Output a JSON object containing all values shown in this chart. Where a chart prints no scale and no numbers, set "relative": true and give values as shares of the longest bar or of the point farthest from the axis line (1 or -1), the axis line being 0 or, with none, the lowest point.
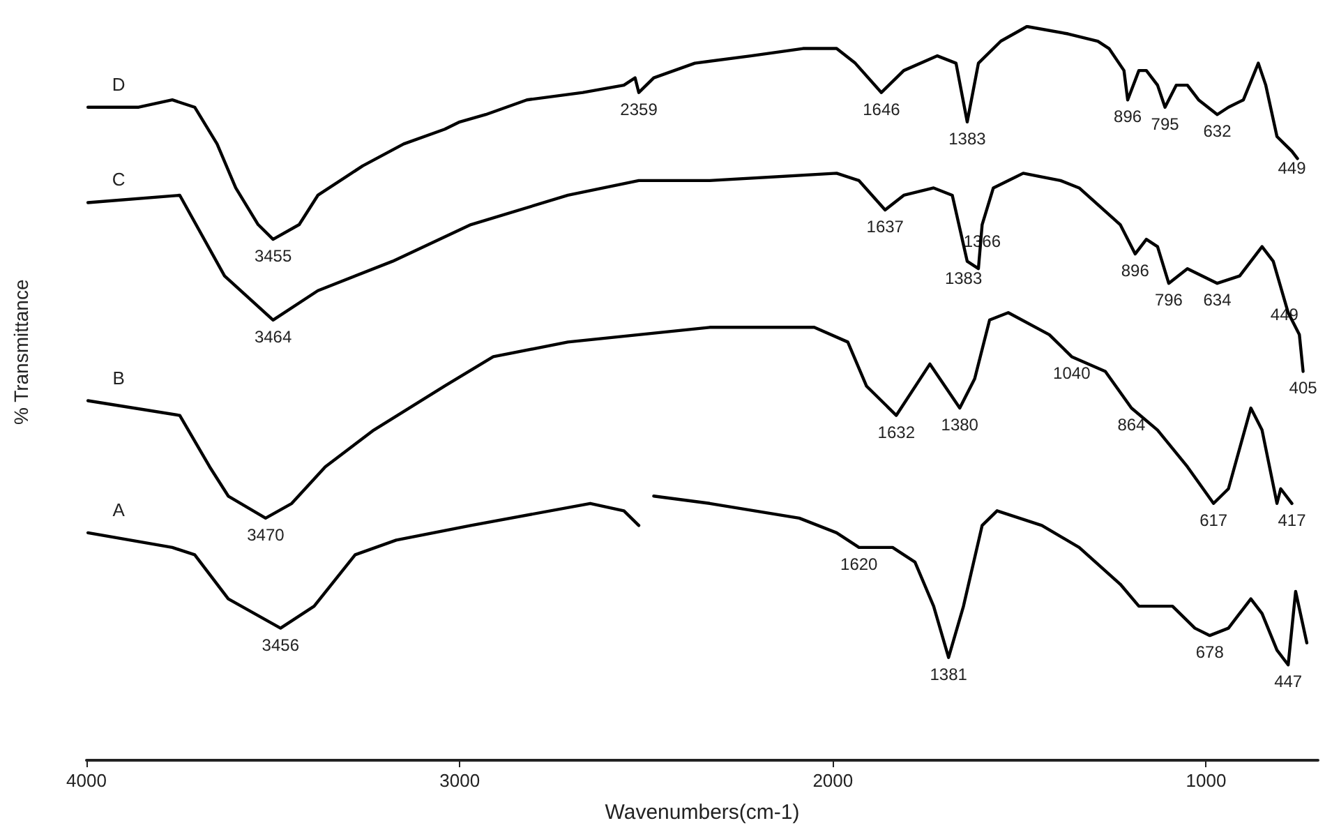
{
  "chart_data": {
    "type": "line",
    "xlabel": "Wavenumbers(cm-1)",
    "ylabel": "% Transmittance",
    "relative": true,
    "xlim": [
      4000,
      700
    ],
    "xticks": [
      4000,
      3000,
      2000,
      1000
    ],
    "marker": "none",
    "line_style": "solid",
    "series": [
      {
        "name": "D",
        "color": "#000000",
        "x": [
          3996,
          3860,
          3770,
          3710,
          3650,
          3600,
          3540,
          3500,
          3430,
          3380,
          3260,
          3150,
          3040,
          3000,
          2930,
          2820,
          2670,
          2560,
          2530,
          2520,
          2500,
          2480,
          2370,
          2220,
          2080,
          1990,
          1940,
          1870,
          1810,
          1720,
          1670,
          1640,
          1610,
          1550,
          1480,
          1370,
          1290,
          1260,
          1220,
          1210,
          1180,
          1160,
          1130,
          1110,
          1080,
          1050,
          1020,
          970,
          940,
          900,
          860,
          840,
          810,
          790,
          770,
          755
        ],
        "values": [
          0.89,
          0.89,
          0.9,
          0.89,
          0.84,
          0.78,
          0.73,
          0.71,
          0.73,
          0.77,
          0.81,
          0.84,
          0.86,
          0.87,
          0.88,
          0.9,
          0.91,
          0.92,
          0.93,
          0.91,
          0.92,
          0.93,
          0.95,
          0.96,
          0.97,
          0.97,
          0.95,
          0.91,
          0.94,
          0.96,
          0.95,
          0.87,
          0.95,
          0.98,
          1.0,
          0.99,
          0.98,
          0.97,
          0.94,
          0.9,
          0.94,
          0.94,
          0.92,
          0.89,
          0.92,
          0.92,
          0.9,
          0.88,
          0.89,
          0.9,
          0.95,
          0.92,
          0.85,
          0.84,
          0.83,
          0.82
        ]
      },
      {
        "name": "C",
        "color": "#000000",
        "x": [
          3996,
          3750,
          3630,
          3500,
          3380,
          3180,
          2970,
          2710,
          2520,
          2330,
          1990,
          1930,
          1860,
          1810,
          1730,
          1680,
          1640,
          1610,
          1600,
          1570,
          1490,
          1390,
          1340,
          1230,
          1190,
          1160,
          1130,
          1100,
          1050,
          1010,
          970,
          910,
          850,
          820,
          780,
          750,
          740
        ],
        "values": [
          0.76,
          0.77,
          0.66,
          0.6,
          0.64,
          0.68,
          0.73,
          0.77,
          0.79,
          0.79,
          0.8,
          0.79,
          0.75,
          0.77,
          0.78,
          0.77,
          0.68,
          0.67,
          0.73,
          0.78,
          0.8,
          0.79,
          0.78,
          0.73,
          0.69,
          0.71,
          0.7,
          0.65,
          0.67,
          0.66,
          0.65,
          0.66,
          0.7,
          0.68,
          0.61,
          0.58,
          0.53
        ]
      },
      {
        "name": "B",
        "color": "#000000",
        "x": [
          3996,
          3750,
          3670,
          3620,
          3520,
          3450,
          3360,
          3230,
          3040,
          2910,
          2710,
          2520,
          2330,
          2050,
          1960,
          1910,
          1830,
          1740,
          1660,
          1620,
          1580,
          1530,
          1420,
          1360,
          1270,
          1200,
          1130,
          1050,
          980,
          940,
          880,
          850,
          810,
          800,
          770
        ],
        "values": [
          0.49,
          0.47,
          0.4,
          0.36,
          0.33,
          0.35,
          0.4,
          0.45,
          0.51,
          0.55,
          0.57,
          0.58,
          0.59,
          0.59,
          0.57,
          0.51,
          0.47,
          0.54,
          0.48,
          0.52,
          0.6,
          0.61,
          0.58,
          0.55,
          0.53,
          0.48,
          0.45,
          0.4,
          0.35,
          0.37,
          0.48,
          0.45,
          0.35,
          0.37,
          0.35
        ]
      },
      {
        "name": "A",
        "color": "#000000",
        "x": [
          3996,
          3770,
          3710,
          3620,
          3480,
          3390,
          3280,
          3170,
          2970,
          2650,
          2560,
          2520,
          2500,
          2480,
          2330,
          2090,
          1990,
          1930,
          1840,
          1780,
          1730,
          1690,
          1650,
          1600,
          1560,
          1440,
          1340,
          1230,
          1180,
          1090,
          1030,
          990,
          940,
          880,
          850,
          810,
          780,
          760,
          730
        ],
        "values": [
          0.31,
          0.29,
          0.28,
          0.22,
          0.18,
          0.21,
          0.28,
          0.3,
          0.32,
          0.35,
          0.34,
          0.32,
          null,
          0.36,
          0.35,
          0.33,
          0.31,
          0.29,
          0.29,
          0.27,
          0.21,
          0.14,
          0.21,
          0.32,
          0.34,
          0.32,
          0.29,
          0.24,
          0.21,
          0.21,
          0.18,
          0.17,
          0.18,
          0.22,
          0.2,
          0.15,
          0.13,
          0.23,
          0.16
        ]
      }
    ],
    "annotations": [
      {
        "text": "2359",
        "x": 2520,
        "y": 0.91
      },
      {
        "text": "1646",
        "x": 1870,
        "y": 0.91
      },
      {
        "text": "1383",
        "x": 1640,
        "y": 0.87
      },
      {
        "text": "896",
        "x": 1210,
        "y": 0.9
      },
      {
        "text": "795",
        "x": 1110,
        "y": 0.89
      },
      {
        "text": "632",
        "x": 970,
        "y": 0.88
      },
      {
        "text": "449",
        "x": 770,
        "y": 0.83
      },
      {
        "text": "3455",
        "x": 3500,
        "y": 0.71
      },
      {
        "text": "3464",
        "x": 3500,
        "y": 0.6
      },
      {
        "text": "1637",
        "x": 1860,
        "y": 0.75
      },
      {
        "text": "1383",
        "x": 1650,
        "y": 0.68
      },
      {
        "text": "1366",
        "x": 1600,
        "y": 0.73
      },
      {
        "text": "896",
        "x": 1190,
        "y": 0.69
      },
      {
        "text": "796",
        "x": 1100,
        "y": 0.65
      },
      {
        "text": "634",
        "x": 970,
        "y": 0.65
      },
      {
        "text": "449",
        "x": 790,
        "y": 0.63
      },
      {
        "text": "405",
        "x": 740,
        "y": 0.53
      },
      {
        "text": "3470",
        "x": 3520,
        "y": 0.33
      },
      {
        "text": "1632",
        "x": 1830,
        "y": 0.47
      },
      {
        "text": "1380",
        "x": 1660,
        "y": 0.48
      },
      {
        "text": "1040",
        "x": 1360,
        "y": 0.55
      },
      {
        "text": "864",
        "x": 1200,
        "y": 0.48
      },
      {
        "text": "617",
        "x": 980,
        "y": 0.35
      },
      {
        "text": "417",
        "x": 770,
        "y": 0.35
      },
      {
        "text": "3456",
        "x": 3480,
        "y": 0.18
      },
      {
        "text": "1620",
        "x": 1930,
        "y": 0.29
      },
      {
        "text": "1381",
        "x": 1690,
        "y": 0.14
      },
      {
        "text": "678",
        "x": 990,
        "y": 0.17
      },
      {
        "text": "447",
        "x": 780,
        "y": 0.13
      }
    ]
  }
}
